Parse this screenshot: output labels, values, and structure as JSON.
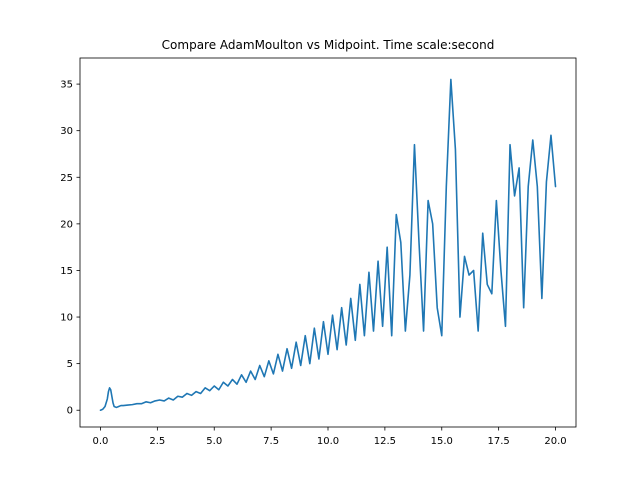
{
  "chart_data": {
    "type": "line",
    "title": "Compare AdamMoulton vs Midpoint. Time scale:second",
    "xlabel": "",
    "ylabel": "",
    "xlim": [
      -0.9,
      20.9
    ],
    "ylim": [
      -1.8,
      37.8
    ],
    "xticks": [
      0.0,
      2.5,
      5.0,
      7.5,
      10.0,
      12.5,
      15.0,
      17.5,
      20.0
    ],
    "xtick_labels": [
      "0.0",
      "2.5",
      "5.0",
      "7.5",
      "10.0",
      "12.5",
      "15.0",
      "17.5",
      "20.0"
    ],
    "yticks": [
      0,
      5,
      10,
      15,
      20,
      25,
      30,
      35
    ],
    "ytick_labels": [
      "0",
      "5",
      "10",
      "15",
      "20",
      "25",
      "30",
      "35"
    ],
    "grid": false,
    "series": [
      {
        "color": "#1f77b4",
        "x": [
          0.0,
          0.1,
          0.2,
          0.3,
          0.35,
          0.4,
          0.45,
          0.5,
          0.55,
          0.6,
          0.7,
          0.8,
          0.9,
          1.0,
          1.2,
          1.4,
          1.6,
          1.8,
          2.0,
          2.2,
          2.4,
          2.6,
          2.8,
          3.0,
          3.2,
          3.4,
          3.6,
          3.8,
          4.0,
          4.2,
          4.4,
          4.6,
          4.8,
          5.0,
          5.2,
          5.4,
          5.6,
          5.8,
          6.0,
          6.2,
          6.4,
          6.6,
          6.8,
          7.0,
          7.2,
          7.4,
          7.6,
          7.8,
          8.0,
          8.2,
          8.4,
          8.6,
          8.8,
          9.0,
          9.2,
          9.4,
          9.6,
          9.8,
          10.0,
          10.2,
          10.4,
          10.6,
          10.8,
          11.0,
          11.2,
          11.4,
          11.6,
          11.8,
          12.0,
          12.2,
          12.4,
          12.6,
          12.8,
          13.0,
          13.2,
          13.4,
          13.6,
          13.8,
          14.0,
          14.2,
          14.4,
          14.6,
          14.8,
          15.0,
          15.2,
          15.4,
          15.6,
          15.8,
          16.0,
          16.2,
          16.4,
          16.6,
          16.8,
          17.0,
          17.2,
          17.4,
          17.6,
          17.8,
          18.0,
          18.2,
          18.4,
          18.6,
          18.8,
          19.0,
          19.2,
          19.4,
          19.6,
          19.8,
          20.0
        ],
        "y": [
          0.0,
          0.1,
          0.4,
          1.2,
          2.0,
          2.4,
          2.2,
          1.5,
          0.8,
          0.4,
          0.3,
          0.4,
          0.5,
          0.5,
          0.55,
          0.6,
          0.7,
          0.7,
          0.9,
          0.8,
          1.0,
          1.1,
          1.0,
          1.3,
          1.1,
          1.5,
          1.4,
          1.8,
          1.6,
          2.0,
          1.8,
          2.4,
          2.1,
          2.6,
          2.2,
          3.0,
          2.6,
          3.3,
          2.8,
          3.8,
          3.0,
          4.2,
          3.3,
          4.8,
          3.6,
          5.3,
          3.9,
          6.0,
          4.2,
          6.6,
          4.5,
          7.3,
          4.8,
          8.0,
          5.0,
          8.8,
          5.5,
          9.5,
          6.0,
          10.2,
          6.5,
          11.0,
          7.0,
          12.0,
          7.5,
          13.5,
          8.0,
          14.8,
          8.5,
          16.0,
          9.0,
          17.5,
          8.0,
          21.0,
          18.0,
          8.5,
          14.5,
          28.5,
          18.0,
          8.5,
          22.5,
          20.0,
          11.0,
          8.0,
          24.0,
          35.5,
          28.0,
          10.0,
          16.5,
          14.5,
          15.0,
          8.5,
          19.0,
          13.5,
          12.5,
          22.5,
          15.0,
          9.0,
          28.5,
          23.0,
          26.0,
          11.0,
          24.0,
          29.0,
          24.0,
          12.0,
          24.5,
          29.5,
          24.0
        ]
      }
    ]
  }
}
